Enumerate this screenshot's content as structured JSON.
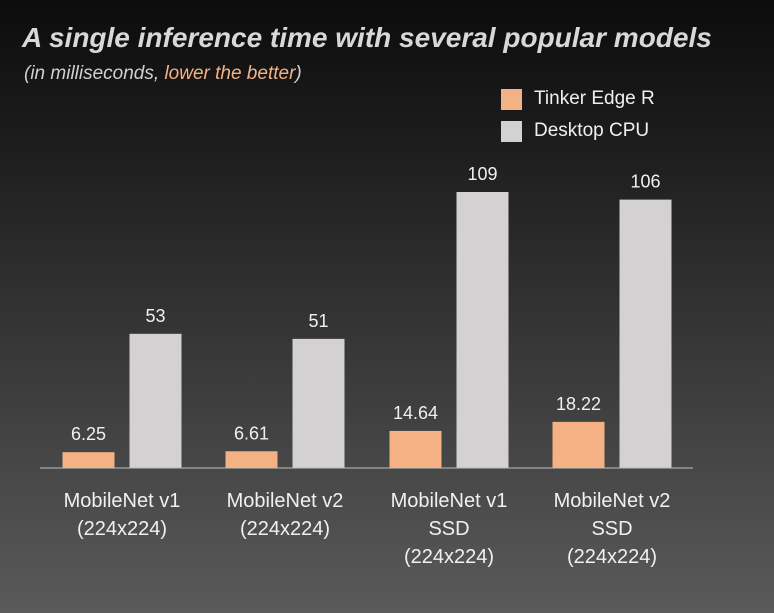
{
  "chart_data": {
    "type": "bar",
    "title": "A single inference time with several popular models",
    "subtitle_prefix": "(in milliseconds, ",
    "subtitle_highlight": "lower the better",
    "subtitle_suffix": ")",
    "categories": [
      [
        "MobileNet v1",
        "(224x224)"
      ],
      [
        "MobileNet v2",
        "(224x224)"
      ],
      [
        "MobileNet v1",
        "SSD",
        "(224x224)"
      ],
      [
        "MobileNet v2",
        "SSD",
        "(224x224)"
      ]
    ],
    "series": [
      {
        "name": "Tinker Edge R",
        "values": [
          6.25,
          6.61,
          14.64,
          18.22
        ],
        "labels": [
          "6.25",
          "6.61",
          "14.64",
          "18.22"
        ],
        "color": "#f4b183"
      },
      {
        "name": "Desktop CPU",
        "values": [
          53,
          51,
          109,
          106
        ],
        "labels": [
          "53",
          "51",
          "109",
          "106"
        ],
        "color": "#d3d1d2"
      }
    ],
    "ylim": [
      0,
      109
    ],
    "legend_position": "top-right",
    "grid": false,
    "axis_color": "#bfbfbf"
  }
}
